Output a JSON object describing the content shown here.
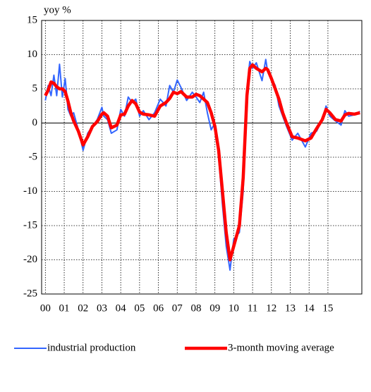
{
  "chart_data": {
    "type": "line",
    "y_label": "yoy %",
    "x": [
      0,
      0.15,
      0.3,
      0.45,
      0.6,
      0.75,
      0.9,
      1.05,
      1.2,
      1.35,
      1.5,
      1.75,
      2.0,
      2.25,
      2.5,
      2.75,
      3.0,
      3.1,
      3.3,
      3.5,
      3.8,
      4.0,
      4.2,
      4.4,
      4.6,
      4.8,
      5.0,
      5.2,
      5.5,
      5.8,
      6.1,
      6.4,
      6.6,
      6.8,
      7.0,
      7.2,
      7.5,
      7.8,
      8.0,
      8.2,
      8.4,
      8.6,
      8.8,
      9.0,
      9.2,
      9.4,
      9.6,
      9.8,
      10.0,
      10.3,
      10.5,
      10.7,
      10.85,
      11.0,
      11.2,
      11.5,
      11.7,
      11.8,
      12.0,
      12.2,
      12.4,
      12.6,
      12.8,
      13.1,
      13.4,
      13.8,
      14.1,
      14.4,
      14.7,
      14.9,
      15.1,
      15.4,
      15.7,
      15.9,
      16.1,
      16.4,
      16.7
    ],
    "series": [
      {
        "name": "industrial production",
        "color": "#3366ff",
        "width": 2,
        "values": [
          3.3,
          5.5,
          4.0,
          7.0,
          4.0,
          8.6,
          3.8,
          6.5,
          2.0,
          1.0,
          1.5,
          -1.0,
          -4.0,
          -1.5,
          -0.5,
          0.5,
          2.3,
          1.0,
          0.5,
          -1.5,
          -1.0,
          2.0,
          1.0,
          3.8,
          3.0,
          3.5,
          1.0,
          1.8,
          0.5,
          1.5,
          3.5,
          2.5,
          5.5,
          4.5,
          6.3,
          5.2,
          3.3,
          4.5,
          3.8,
          3.0,
          4.5,
          1.5,
          -1.0,
          0.0,
          -5,
          -12,
          -18,
          -21.5,
          -17,
          -16,
          -10,
          5,
          9,
          8,
          8.8,
          6.2,
          9.3,
          7.5,
          6.5,
          5.5,
          2.5,
          1.0,
          -0.5,
          -2.5,
          -1.5,
          -3.5,
          -1.5,
          -1.2,
          0.5,
          2.5,
          1.0,
          0.3,
          -0.3,
          1.8,
          1.0,
          1.2,
          1.7
        ]
      },
      {
        "name": "3-month moving average",
        "color": "#ff0000",
        "width": 4.5,
        "values": [
          4.0,
          4.8,
          6.0,
          5.8,
          5.3,
          5.0,
          5.0,
          4.6,
          3.2,
          1.5,
          0.3,
          -1.2,
          -3.2,
          -2.0,
          -0.5,
          0.2,
          1.3,
          1.5,
          1.0,
          -0.7,
          -0.3,
          1.2,
          1.3,
          2.5,
          3.3,
          2.8,
          1.6,
          1.3,
          1.2,
          1.0,
          2.5,
          3.0,
          3.6,
          4.5,
          4.3,
          4.6,
          3.8,
          3.8,
          4.2,
          4.0,
          3.5,
          3.0,
          1.5,
          -0.5,
          -4,
          -10,
          -16,
          -20,
          -18,
          -15,
          -8,
          4,
          8,
          8.5,
          8.0,
          7.5,
          8.0,
          7.8,
          6.5,
          5.0,
          3.5,
          1.5,
          0,
          -2.0,
          -2.2,
          -2.6,
          -2.2,
          -0.8,
          0.5,
          2.0,
          1.5,
          0.5,
          0.3,
          1.2,
          1.4,
          1.3,
          1.5
        ]
      }
    ],
    "xlim": [
      -0.2,
      16.8
    ],
    "xticks": [
      {
        "value": 0,
        "label": "00"
      },
      {
        "value": 1,
        "label": "01"
      },
      {
        "value": 2,
        "label": "02"
      },
      {
        "value": 3,
        "label": "03"
      },
      {
        "value": 4,
        "label": "04"
      },
      {
        "value": 5,
        "label": "05"
      },
      {
        "value": 6,
        "label": "06"
      },
      {
        "value": 7,
        "label": "07"
      },
      {
        "value": 8,
        "label": "08"
      },
      {
        "value": 9,
        "label": "09"
      },
      {
        "value": 10,
        "label": "10"
      },
      {
        "value": 11,
        "label": "11"
      },
      {
        "value": 12,
        "label": "12"
      },
      {
        "value": 13,
        "label": "13"
      },
      {
        "value": 14,
        "label": "14"
      },
      {
        "value": 15,
        "label": "15"
      }
    ],
    "ylim": [
      -25,
      15
    ],
    "yticks": [
      15,
      10,
      5,
      0,
      -5,
      -10,
      -15,
      -20,
      -25
    ],
    "grid": true,
    "legend": "bottom"
  }
}
